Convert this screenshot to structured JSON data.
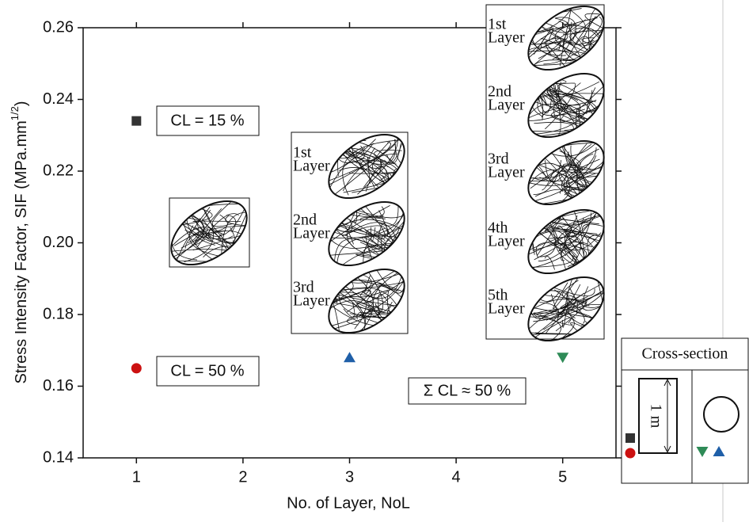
{
  "chart_data": {
    "type": "scatter",
    "xlabel": "No. of Layer, NoL",
    "ylabel": "Stress Intensity Factor, SIF (MPa.mm",
    "ylabel_sup": "1/2",
    "ylabel_end": ")",
    "xlim": [
      0.5,
      5.5
    ],
    "xticks": [
      1,
      2,
      3,
      4,
      5
    ],
    "ylim": [
      0.14,
      0.26
    ],
    "yticks": [
      0.14,
      0.16,
      0.18,
      {
        "value": 0.2,
        "label": "0.20"
      },
      0.22,
      0.24,
      0.26
    ],
    "series": [
      {
        "marker": "square",
        "color": "#333333",
        "x": [
          1
        ],
        "values": [
          0.234
        ]
      },
      {
        "marker": "circle",
        "color": "#cc1111",
        "x": [
          1
        ],
        "values": [
          0.165
        ]
      },
      {
        "marker": "triangle-up",
        "color": "#1f5fa8",
        "x": [
          3
        ],
        "values": [
          0.168
        ]
      },
      {
        "marker": "triangle-down",
        "color": "#2e8b57",
        "x": [
          5
        ],
        "values": [
          0.168
        ]
      }
    ],
    "annotations": [
      "CL = 15 %",
      "CL = 50 %",
      "Σ CL ≈ 50 %"
    ],
    "insets": [
      {
        "labels": []
      },
      {
        "labels": [
          [
            "1st",
            "Layer"
          ],
          [
            "2nd",
            "Layer"
          ],
          [
            "3rd",
            "Layer"
          ]
        ]
      },
      {
        "labels": [
          [
            "1st",
            "Layer"
          ],
          [
            "2nd",
            "Layer"
          ],
          [
            "3rd",
            "Layer"
          ],
          [
            "4th",
            "Layer"
          ],
          [
            "5th",
            "Layer"
          ]
        ]
      }
    ],
    "cross_section": {
      "title": "Cross-section",
      "dimension": "1 m"
    }
  }
}
